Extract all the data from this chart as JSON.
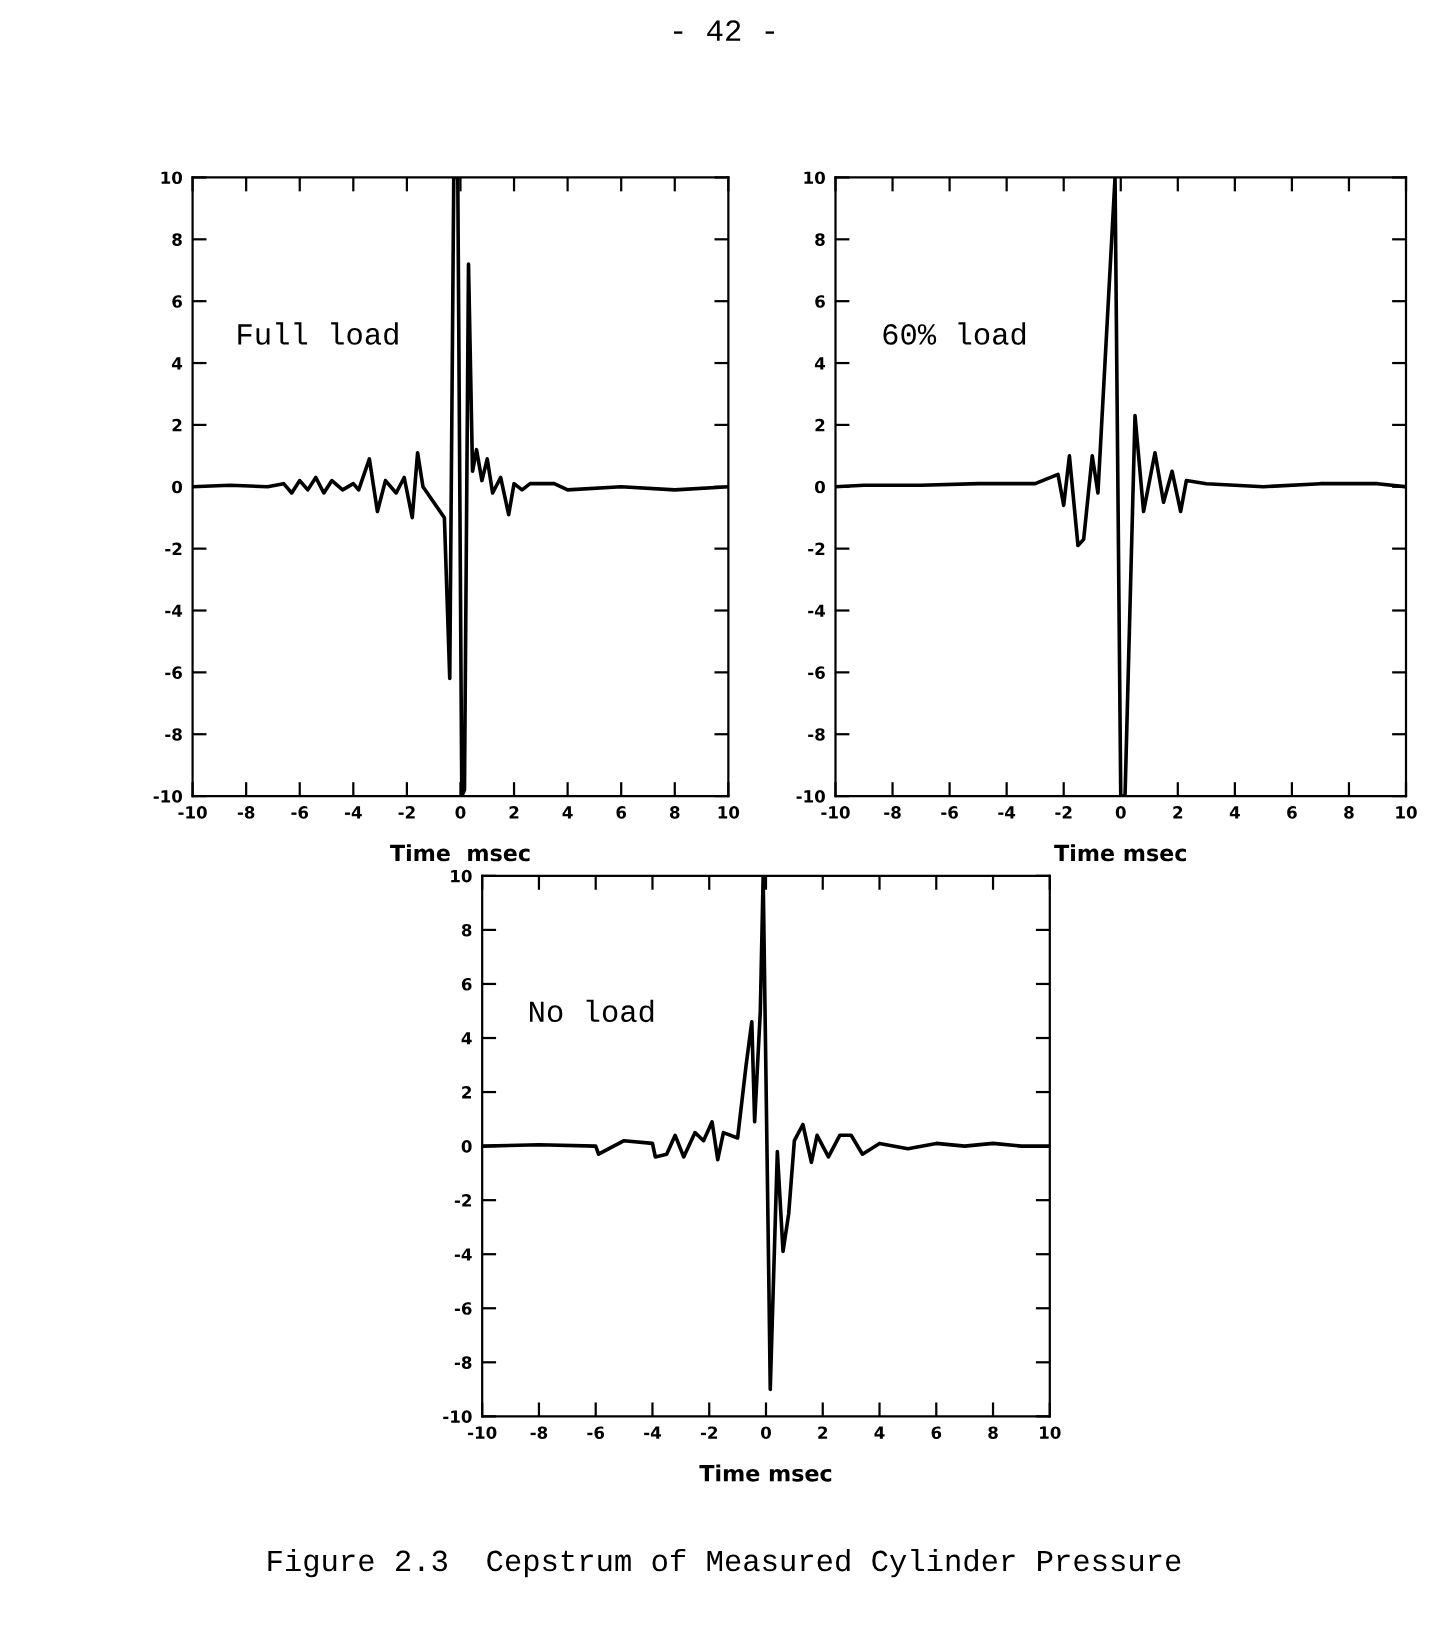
{
  "chart_data": [
    {
      "type": "line",
      "xlabel": "Time  msec",
      "annotations": [
        "Full load",
        "- 42 -"
      ],
      "xlim": [
        -10,
        10
      ],
      "ylim": [
        -10,
        10
      ],
      "xticks": [
        -10,
        -8,
        -6,
        -4,
        -2,
        0,
        2,
        4,
        6,
        8,
        10
      ],
      "yticks": [
        -10,
        -8,
        -6,
        -4,
        -2,
        0,
        2,
        4,
        6,
        8,
        10
      ],
      "grid": false,
      "legend": false,
      "series": [
        {
          "color": "#000000",
          "x": [
            -10,
            -8.6,
            -7.2,
            -6.6,
            -6.3,
            -6,
            -5.7,
            -5.4,
            -5.1,
            -4.8,
            -4.4,
            -4,
            -3.8,
            -3.4,
            -3.1,
            -2.8,
            -2.4,
            -2.1,
            -1.8,
            -1.6,
            -1.4,
            -0.6,
            -0.4,
            -0.25,
            -0.1,
            0.05,
            0.15,
            0.3,
            0.45,
            0.6,
            0.8,
            1.0,
            1.2,
            1.5,
            1.8,
            2.0,
            2.3,
            2.6,
            3.5,
            4,
            6,
            8,
            10
          ],
          "values": [
            0,
            0.05,
            0,
            0.1,
            -0.2,
            0.2,
            -0.1,
            0.3,
            -0.2,
            0.2,
            -0.1,
            0.1,
            -0.1,
            0.9,
            -0.8,
            0.2,
            -0.2,
            0.3,
            -1,
            1.1,
            0,
            -1,
            -6.2,
            10,
            10,
            -10,
            -9.8,
            7.2,
            0.5,
            1.2,
            0.2,
            0.9,
            -0.2,
            0.3,
            -0.9,
            0.1,
            -0.1,
            0.1,
            0.1,
            -0.1,
            0,
            -0.1,
            0
          ]
        }
      ]
    },
    {
      "type": "line",
      "xlabel": "Time msec",
      "annotations": [
        "60% load"
      ],
      "xlim": [
        -10,
        10
      ],
      "ylim": [
        -10,
        10
      ],
      "xticks": [
        -10,
        -8,
        -6,
        -4,
        -2,
        0,
        2,
        4,
        6,
        8,
        10
      ],
      "yticks": [
        -10,
        -8,
        -6,
        -4,
        -2,
        0,
        2,
        4,
        6,
        8,
        10
      ],
      "grid": false,
      "legend": false,
      "series": [
        {
          "color": "#000000",
          "x": [
            -10,
            -9,
            -7,
            -5,
            -4,
            -3,
            -2.2,
            -2,
            -1.8,
            -1.5,
            -1.3,
            -1.0,
            -0.8,
            -0.2,
            0.0,
            0.15,
            0.5,
            0.8,
            1.2,
            1.5,
            1.8,
            2.1,
            2.3,
            3,
            5,
            7,
            9,
            10
          ],
          "values": [
            0,
            0.05,
            0.05,
            0.1,
            0.1,
            0.1,
            0.4,
            -0.6,
            1,
            -1.9,
            -1.7,
            1,
            -0.2,
            10,
            -10,
            -10,
            2.3,
            -0.8,
            1.1,
            -0.5,
            0.5,
            -0.8,
            0.2,
            0.1,
            0,
            0.1,
            0.1,
            0
          ]
        }
      ]
    },
    {
      "type": "line",
      "xlabel": "Time msec",
      "annotations": [
        "No load",
        "Figure 2.3  Cepstrum of Measured Cylinder Pressure"
      ],
      "xlim": [
        -10,
        10
      ],
      "ylim": [
        -10,
        10
      ],
      "xticks": [
        -10,
        -8,
        -6,
        -4,
        -2,
        0,
        2,
        4,
        6,
        8,
        10
      ],
      "yticks": [
        -10,
        -8,
        -6,
        -4,
        -2,
        0,
        2,
        4,
        6,
        8,
        10
      ],
      "grid": false,
      "legend": false,
      "series": [
        {
          "color": "#000000",
          "x": [
            -10,
            -8,
            -6,
            -5.9,
            -5,
            -4,
            -3.9,
            -3.5,
            -3.2,
            -2.9,
            -2.5,
            -2.2,
            -1.9,
            -1.7,
            -1.5,
            -1,
            -0.7,
            -0.5,
            -0.4,
            -0.2,
            -0.1,
            0.1,
            0.15,
            0.4,
            0.6,
            0.8,
            1.0,
            1.3,
            1.6,
            1.8,
            2.2,
            2.6,
            3.0,
            3.4,
            4,
            5,
            6,
            7,
            8,
            9,
            10
          ],
          "values": [
            0,
            0.05,
            0,
            -0.3,
            0.2,
            0.1,
            -0.4,
            -0.3,
            0.4,
            -0.4,
            0.5,
            0.2,
            0.9,
            -0.5,
            0.5,
            0.3,
            3,
            4.6,
            0.9,
            5,
            10,
            -5,
            -9,
            -0.2,
            -3.9,
            -2.5,
            0.2,
            0.8,
            -0.6,
            0.4,
            -0.4,
            0.4,
            0.4,
            -0.3,
            0.1,
            -0.1,
            0.1,
            0,
            0.1,
            0,
            0
          ]
        }
      ]
    }
  ]
}
